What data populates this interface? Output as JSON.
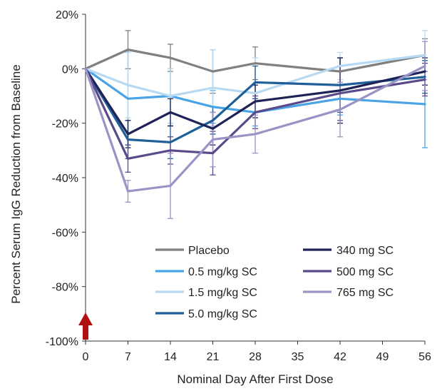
{
  "chart_data": {
    "type": "line",
    "title": "",
    "xlabel": "Nominal Day After First Dose",
    "ylabel": "Percent Serum IgG Reduction from Baseline",
    "x": [
      0,
      7,
      14,
      21,
      28,
      42,
      56
    ],
    "xticks": [
      "0",
      "7",
      "14",
      "21",
      "28",
      "35",
      "42",
      "49",
      "56"
    ],
    "xlim": [
      0,
      56
    ],
    "ylim": [
      -100,
      20
    ],
    "yticks": [
      "-100%",
      "-80%",
      "-60%",
      "-40%",
      "-20%",
      "0%",
      "20%"
    ],
    "grid": false,
    "legend_position": "lower-right, inside plot, two columns",
    "dosing_marker": {
      "day": 0,
      "color": "#b01010",
      "shape": "up-arrow"
    },
    "series": [
      {
        "name": "Placebo",
        "color": "#808080",
        "values": [
          0,
          7,
          4,
          -1,
          2,
          -1,
          5
        ],
        "err": [
          0,
          7,
          5,
          8,
          6,
          5,
          6
        ]
      },
      {
        "name": "0.5 mg/kg SC",
        "color": "#4aa3e6",
        "values": [
          0,
          -11,
          -10,
          -14,
          -16,
          -11,
          -13
        ],
        "err": [
          0,
          17,
          10,
          6,
          5,
          6,
          16
        ]
      },
      {
        "name": "1.5 mg/kg SC",
        "color": "#b7d9f2",
        "values": [
          0,
          -6,
          -10,
          -7,
          -9,
          1,
          5
        ],
        "err": [
          0,
          12,
          10,
          14,
          13,
          5,
          9
        ]
      },
      {
        "name": "5.0 mg/kg SC",
        "color": "#1f5f99",
        "values": [
          0,
          -26,
          -27,
          -19,
          -5,
          -6,
          -3
        ],
        "err": [
          0,
          7,
          6,
          5,
          6,
          10,
          6
        ]
      },
      {
        "name": "340 mg SC",
        "color": "#1e2356",
        "values": [
          0,
          -24,
          -16,
          -22,
          -12,
          -8,
          -1
        ],
        "err": [
          0,
          5,
          5,
          6,
          6,
          12,
          5
        ]
      },
      {
        "name": "500 mg SC",
        "color": "#5a4a8a",
        "values": [
          0,
          -33,
          -30,
          -31,
          -16,
          -9,
          -4
        ],
        "err": [
          0,
          5,
          5,
          8,
          6,
          10,
          6
        ]
      },
      {
        "name": "765 mg SC",
        "color": "#9a93c6",
        "values": [
          0,
          -45,
          -43,
          -26,
          -24,
          -15,
          1
        ],
        "err": [
          0,
          4,
          12,
          10,
          7,
          10,
          9
        ]
      }
    ]
  }
}
